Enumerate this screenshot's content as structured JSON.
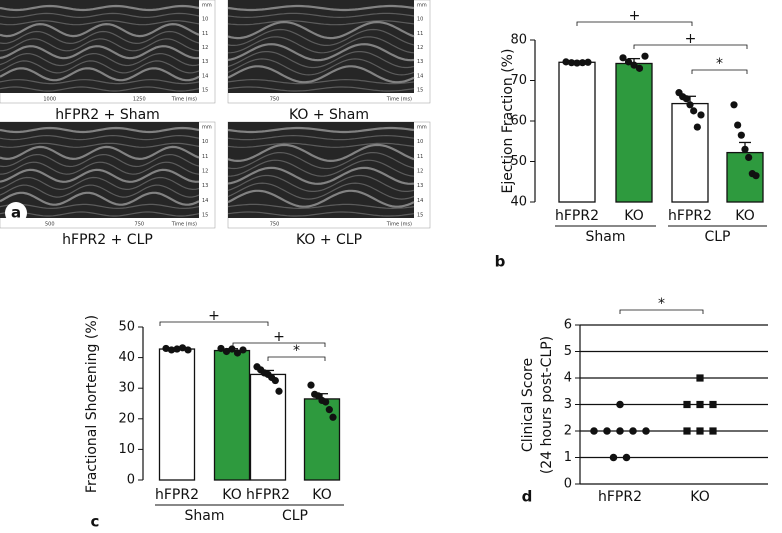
{
  "images": [
    {
      "caption": "hFPR2 + Sham",
      "time_labels": [
        "1000",
        "1250",
        "Time (ms)"
      ],
      "depth_labels": [
        "mm",
        "10",
        "11",
        "12",
        "13",
        "14",
        "15"
      ]
    },
    {
      "caption": "KO + Sham",
      "time_labels": [
        "750",
        "Time (ms)"
      ],
      "depth_labels": [
        "mm",
        "10",
        "11",
        "12",
        "13",
        "14",
        "15"
      ]
    },
    {
      "caption": "hFPR2 + CLP",
      "time_labels": [
        "500",
        "750",
        "Time (ms)"
      ],
      "depth_labels": [
        "mm",
        "10",
        "11",
        "12",
        "13",
        "14",
        "15"
      ]
    },
    {
      "caption": "KO + CLP",
      "time_labels": [
        "750",
        "Time (ms)"
      ],
      "depth_labels": [
        "mm",
        "10",
        "11",
        "12",
        "13",
        "14",
        "15"
      ]
    }
  ],
  "images_panel": "a",
  "chart_data": [
    {
      "type": "bar",
      "panel": "b",
      "ylabel": "Ejection Fraction (%)",
      "categories": [
        "hFPR2",
        "KO",
        "hFPR2",
        "KO"
      ],
      "groups": [
        "Sham",
        "CLP"
      ],
      "values": [
        74.5,
        74.2,
        64.3,
        52.2
      ],
      "errors": [
        0.3,
        1.2,
        1.8,
        2.5
      ],
      "colors": [
        "#ffffff",
        "#2e9a3e",
        "#ffffff",
        "#2e9a3e"
      ],
      "points": [
        [
          74.6,
          74.4,
          74.3,
          74.4,
          74.5
        ],
        [
          75.6,
          74.6,
          73.8,
          73,
          76
        ],
        [
          67,
          66,
          65.5,
          64,
          62.5,
          58.5,
          61.5
        ],
        [
          64,
          59,
          56.5,
          53,
          51,
          47,
          46.5
        ]
      ],
      "ylim": [
        40,
        80
      ],
      "yticks": [
        40,
        50,
        60,
        70,
        80
      ],
      "annotations": [
        "+",
        "+",
        "*"
      ]
    },
    {
      "type": "bar",
      "panel": "c",
      "ylabel": "Fractional Shortening (%)",
      "categories": [
        "hFPR2",
        "KO",
        "hFPR2",
        "KO"
      ],
      "groups": [
        "Sham",
        "CLP"
      ],
      "values": [
        42.8,
        42.3,
        34.5,
        26.5
      ],
      "errors": [
        0.3,
        0.6,
        1.3,
        1.7
      ],
      "colors": [
        "#ffffff",
        "#2e9a3e",
        "#ffffff",
        "#2e9a3e"
      ],
      "points": [
        [
          43,
          42.5,
          42.8,
          43.2,
          42.5
        ],
        [
          43,
          42,
          42.8,
          41.5,
          42.5
        ],
        [
          37,
          36,
          35,
          34.5,
          33.5,
          32.5,
          29
        ],
        [
          31,
          28,
          27.5,
          26,
          25.5,
          23,
          20.5
        ]
      ],
      "ylim": [
        0,
        50
      ],
      "yticks": [
        0,
        10,
        20,
        30,
        40,
        50
      ],
      "annotations": [
        "+",
        "+",
        "*"
      ]
    },
    {
      "type": "dot",
      "panel": "d",
      "ylabel": [
        "Clinical Score",
        "(24 hours post-CLP)"
      ],
      "categories": [
        "hFPR2",
        "KO"
      ],
      "points": [
        [
          3,
          2,
          2,
          2,
          2,
          2,
          1,
          1
        ],
        [
          4,
          3,
          3,
          3,
          2,
          2,
          2
        ]
      ],
      "markers": [
        "circle",
        "square"
      ],
      "ylim": [
        0,
        6
      ],
      "yticks": [
        0,
        1,
        2,
        3,
        4,
        5,
        6
      ],
      "grid": true,
      "annotations": [
        "*"
      ]
    }
  ]
}
